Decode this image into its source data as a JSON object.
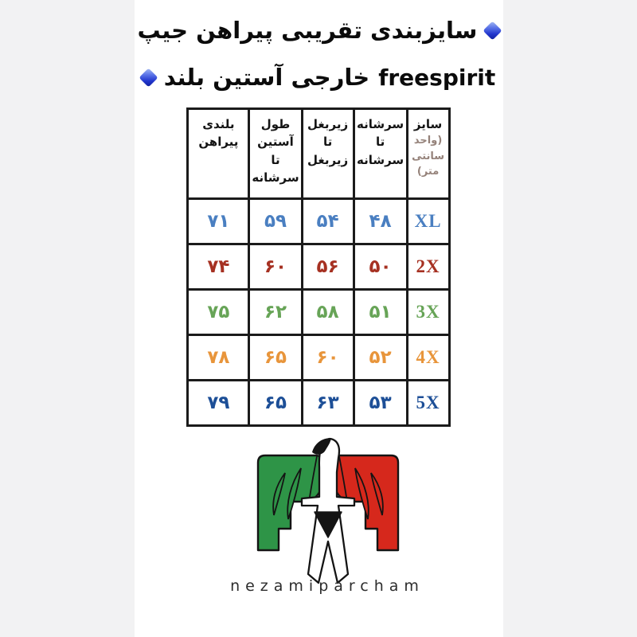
{
  "page": {
    "background": "#f2f2f3",
    "panel_background": "#ffffff",
    "accent_diamond_blue": "#2136cd"
  },
  "title": {
    "line1_fa": "سایزبندی تقریبی پیراهن جیپ",
    "line2_fa": "خارجی آستین بلند",
    "line2_latin": "freespirit"
  },
  "table": {
    "columns": [
      {
        "label": "سایز",
        "sublabel": "(واحد سانتی متر)"
      },
      {
        "label": "سرشانه تا سرشانه"
      },
      {
        "label": "زیربغل تا زیربغل"
      },
      {
        "label": "طول آستین تا سرشانه"
      },
      {
        "label": "بلندی پیراهن"
      }
    ],
    "rows": [
      {
        "size": "XL",
        "color": "#4a7fc1",
        "values": [
          "۴۸",
          "۵۴",
          "۵۹",
          "۷۱"
        ]
      },
      {
        "size": "2X",
        "color": "#a63122",
        "values": [
          "۵۰",
          "۵۶",
          "۶۰",
          "۷۴"
        ]
      },
      {
        "size": "3X",
        "color": "#67a457",
        "values": [
          "۵۱",
          "۵۸",
          "۶۲",
          "۷۵"
        ]
      },
      {
        "size": "4X",
        "color": "#e8953b",
        "values": [
          "۵۲",
          "۶۰",
          "۶۵",
          "۷۸"
        ]
      },
      {
        "size": "5X",
        "color": "#1d4f97",
        "values": [
          "۵۳",
          "۶۳",
          "۶۵",
          "۷۹"
        ]
      }
    ],
    "header_sub_color": "#95827a",
    "border_color": "#1b1b1b"
  },
  "chart_data": {
    "type": "table",
    "title": "سایزبندی تقریبی پیراهن جیپ freespirit خارجی آستین بلند",
    "unit": "سانتی متر",
    "columns_rtl": [
      "سایز (واحد سانتی متر)",
      "سرشانه تا سرشانه",
      "زیربغل تا زیربغل",
      "طول آستین تا سرشانه",
      "بلندی پیراهن"
    ],
    "rows": [
      {
        "size": "XL",
        "shoulder_to_shoulder": 48,
        "armpit_to_armpit": 54,
        "sleeve_length_to_shoulder": 59,
        "shirt_length": 71
      },
      {
        "size": "2X",
        "shoulder_to_shoulder": 50,
        "armpit_to_armpit": 56,
        "sleeve_length_to_shoulder": 60,
        "shirt_length": 74
      },
      {
        "size": "3X",
        "shoulder_to_shoulder": 51,
        "armpit_to_armpit": 58,
        "sleeve_length_to_shoulder": 62,
        "shirt_length": 75
      },
      {
        "size": "4X",
        "shoulder_to_shoulder": 52,
        "armpit_to_armpit": 60,
        "sleeve_length_to_shoulder": 65,
        "shirt_length": 78
      },
      {
        "size": "5X",
        "shoulder_to_shoulder": 53,
        "armpit_to_armpit": 63,
        "sleeve_length_to_shoulder": 65,
        "shirt_length": 79
      }
    ]
  },
  "logo": {
    "caption": "nezamiparcham",
    "wing_green": "#2e9447",
    "wing_red": "#d6281c",
    "outline": "#141414"
  }
}
